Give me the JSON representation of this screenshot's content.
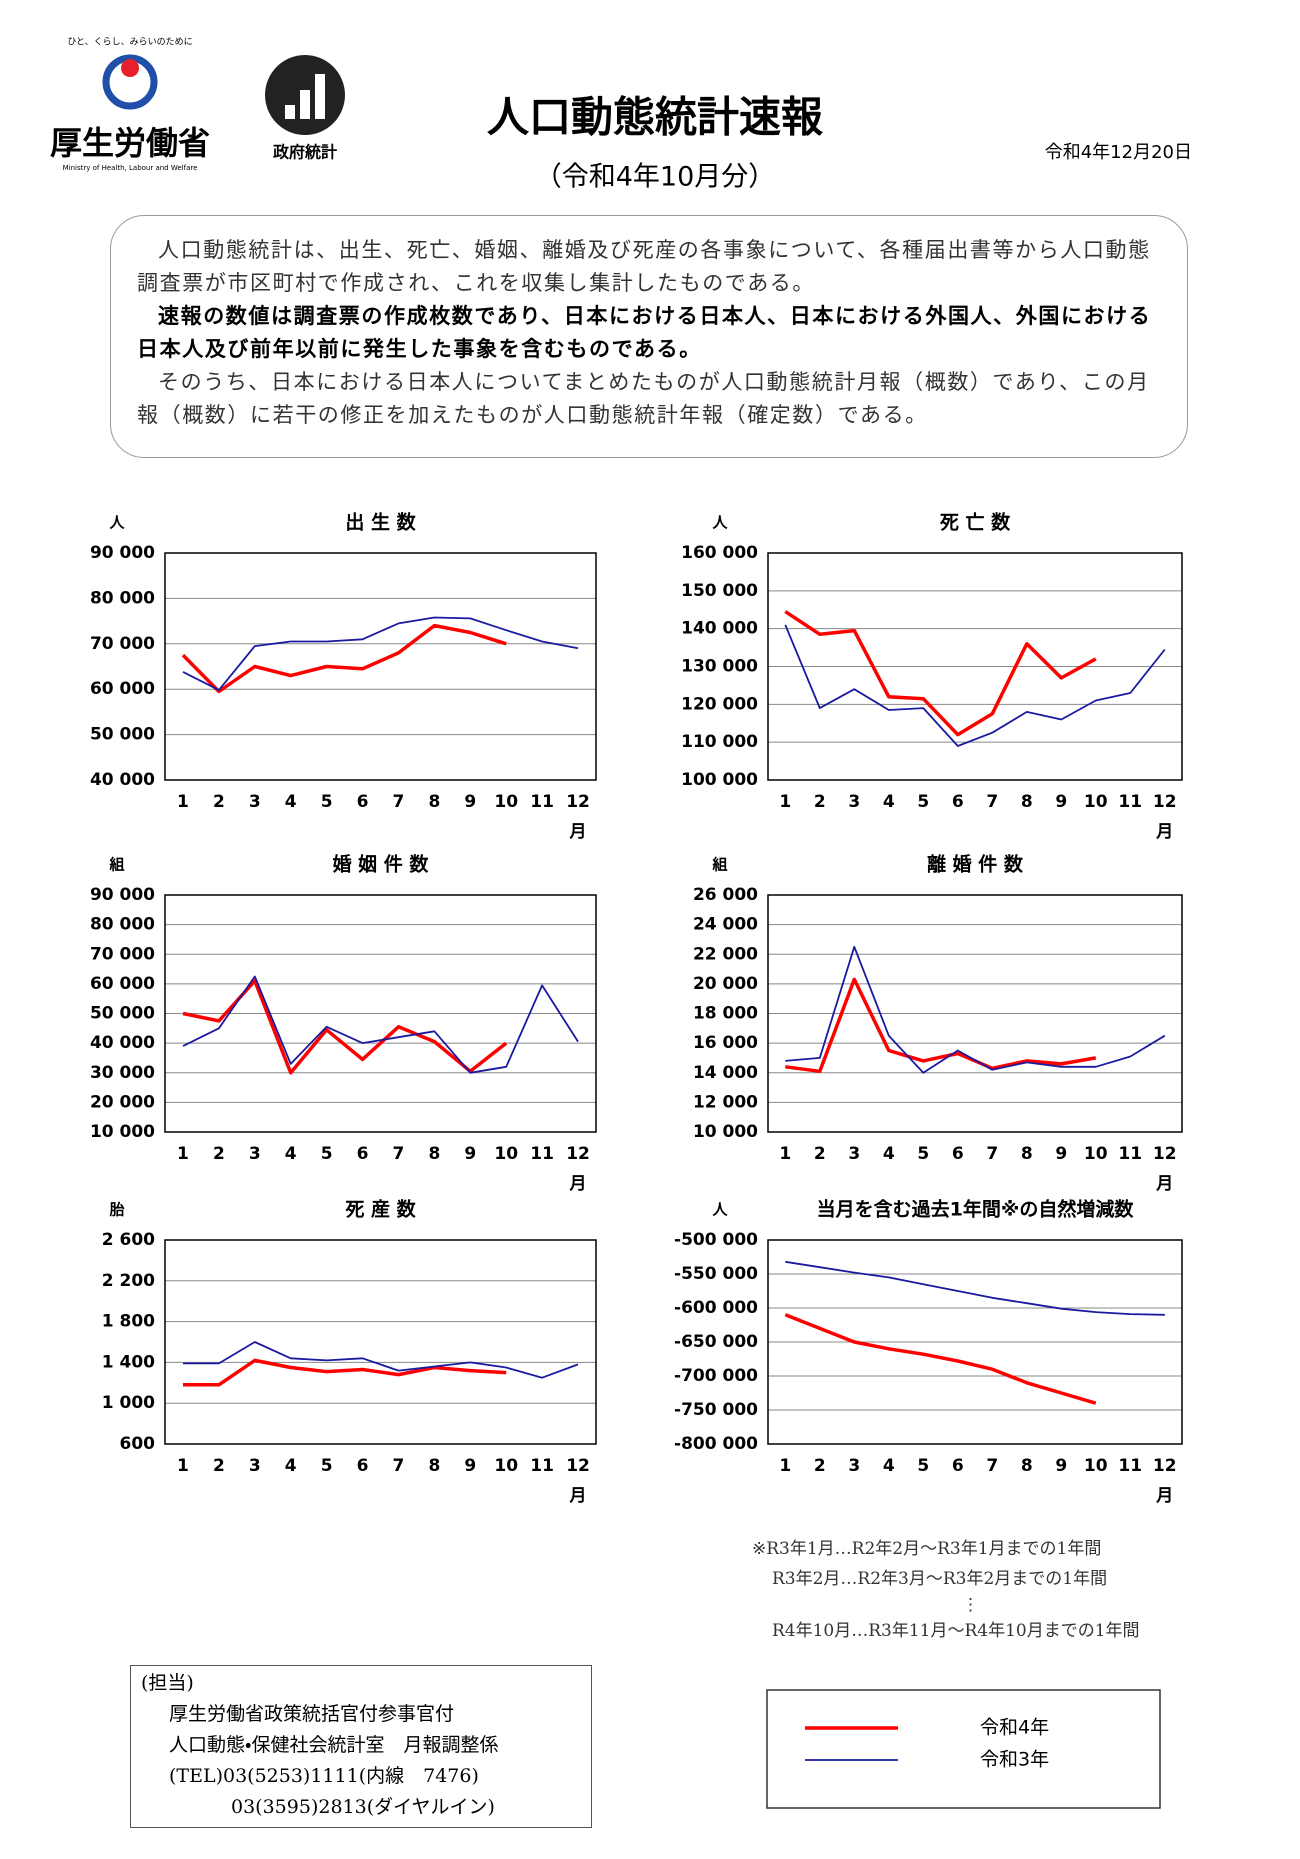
{
  "header": {
    "tagline": "ひと、くらし、みらいのために",
    "ministry": "厚生労働省",
    "ministry_en": "Ministry of Health, Labour and Welfare",
    "stats_logo": "政府統計",
    "title": "人口動態統計速報",
    "subtitle": "（令和4年10月分）",
    "date": "令和4年12月20日"
  },
  "intro": [
    "人口動態統計は、出生、死亡、婚姻、離婚及び死産の各事象について、各種届出書等から人口動態調査票が市区町村で作成され、これを収集し集計したものである。",
    "速報の数値は調査票の作成枚数であり、日本における日本人、日本における外国人、外国における日本人及び前年以前に発生した事象を含むものである。",
    "そのうち、日本における日本人についてまとめたものが人口動態統計月報（概数）であり、この月報（概数）に若干の修正を加えたものが人口動態統計年報（確定数）である。"
  ],
  "chart_data": [
    {
      "type": "line",
      "title": "出 生 数",
      "y_unit": "人",
      "x_unit": "月",
      "grid": true,
      "categories": [
        "1",
        "2",
        "3",
        "4",
        "5",
        "6",
        "7",
        "8",
        "9",
        "10",
        "11",
        "12"
      ],
      "ylim": [
        40000,
        90000
      ],
      "yticks": [
        {
          "value": 40000,
          "label": "40 000"
        },
        {
          "value": 50000,
          "label": "50 000"
        },
        {
          "value": 60000,
          "label": "60 000"
        },
        {
          "value": 70000,
          "label": "70 000"
        },
        {
          "value": 80000,
          "label": "80 000"
        },
        {
          "value": 90000,
          "label": "90 000"
        }
      ],
      "series": [
        {
          "name": "令和4年",
          "color": "#ff0000",
          "values": [
            67500,
            59500,
            65000,
            63000,
            65000,
            64500,
            68000,
            74000,
            72500,
            70000,
            null,
            null
          ]
        },
        {
          "name": "令和3年",
          "color": "#1a1aa0",
          "values": [
            63800,
            59800,
            69500,
            70500,
            70500,
            71000,
            74500,
            75800,
            75600,
            73000,
            70500,
            69000
          ]
        }
      ]
    },
    {
      "type": "line",
      "title": "死 亡 数",
      "y_unit": "人",
      "x_unit": "月",
      "grid": true,
      "categories": [
        "1",
        "2",
        "3",
        "4",
        "5",
        "6",
        "7",
        "8",
        "9",
        "10",
        "11",
        "12"
      ],
      "ylim": [
        100000,
        160000
      ],
      "yticks": [
        {
          "value": 100000,
          "label": "100 000"
        },
        {
          "value": 110000,
          "label": "110 000"
        },
        {
          "value": 120000,
          "label": "120 000"
        },
        {
          "value": 130000,
          "label": "130 000"
        },
        {
          "value": 140000,
          "label": "140 000"
        },
        {
          "value": 150000,
          "label": "150 000"
        },
        {
          "value": 160000,
          "label": "160 000"
        }
      ],
      "series": [
        {
          "color": "#ff0000",
          "values": [
            144500,
            138500,
            139500,
            122000,
            121500,
            112000,
            117500,
            136000,
            127000,
            132000,
            null,
            null
          ]
        },
        {
          "color": "#1a1aa0",
          "values": [
            141000,
            119000,
            124000,
            118500,
            119000,
            109000,
            112500,
            118000,
            116000,
            121000,
            123000,
            134500
          ]
        }
      ]
    },
    {
      "type": "line",
      "title": "婚 姻 件 数",
      "y_unit": "組",
      "x_unit": "月",
      "grid": true,
      "categories": [
        "1",
        "2",
        "3",
        "4",
        "5",
        "6",
        "7",
        "8",
        "9",
        "10",
        "11",
        "12"
      ],
      "ylim": [
        10000,
        90000
      ],
      "yticks": [
        {
          "value": 10000,
          "label": "10 000"
        },
        {
          "value": 20000,
          "label": "20 000"
        },
        {
          "value": 30000,
          "label": "30 000"
        },
        {
          "value": 40000,
          "label": "40 000"
        },
        {
          "value": 50000,
          "label": "50 000"
        },
        {
          "value": 60000,
          "label": "60 000"
        },
        {
          "value": 70000,
          "label": "70 000"
        },
        {
          "value": 80000,
          "label": "80 000"
        },
        {
          "value": 90000,
          "label": "90 000"
        }
      ],
      "series": [
        {
          "color": "#ff0000",
          "values": [
            50000,
            47500,
            61000,
            30000,
            44500,
            34500,
            45500,
            40500,
            30500,
            40000,
            null,
            null
          ]
        },
        {
          "color": "#1a1aa0",
          "values": [
            39000,
            45000,
            62500,
            33000,
            45500,
            40000,
            42000,
            44000,
            30000,
            32000,
            59500,
            40500
          ]
        }
      ]
    },
    {
      "type": "line",
      "title": "離 婚 件 数",
      "y_unit": "組",
      "x_unit": "月",
      "grid": true,
      "categories": [
        "1",
        "2",
        "3",
        "4",
        "5",
        "6",
        "7",
        "8",
        "9",
        "10",
        "11",
        "12"
      ],
      "ylim": [
        10000,
        26000
      ],
      "yticks": [
        {
          "value": 10000,
          "label": "10 000"
        },
        {
          "value": 12000,
          "label": "12 000"
        },
        {
          "value": 14000,
          "label": "14 000"
        },
        {
          "value": 16000,
          "label": "16 000"
        },
        {
          "value": 18000,
          "label": "18 000"
        },
        {
          "value": 20000,
          "label": "20 000"
        },
        {
          "value": 22000,
          "label": "22 000"
        },
        {
          "value": 24000,
          "label": "24 000"
        },
        {
          "value": 26000,
          "label": "26 000"
        }
      ],
      "series": [
        {
          "color": "#ff0000",
          "values": [
            14400,
            14100,
            20300,
            15500,
            14800,
            15300,
            14300,
            14800,
            14600,
            15000,
            null,
            null
          ]
        },
        {
          "color": "#1a1aa0",
          "values": [
            14800,
            15000,
            22500,
            16500,
            14000,
            15500,
            14200,
            14700,
            14400,
            14400,
            15100,
            16500
          ]
        }
      ]
    },
    {
      "type": "line",
      "title": "死 産 数",
      "y_unit": "胎",
      "x_unit": "月",
      "grid": true,
      "categories": [
        "1",
        "2",
        "3",
        "4",
        "5",
        "6",
        "7",
        "8",
        "9",
        "10",
        "11",
        "12"
      ],
      "ylim": [
        600,
        2600
      ],
      "yticks": [
        600,
        {
          "value": 1000,
          "label": "1 000"
        },
        {
          "value": 1400,
          "label": "1 400"
        },
        {
          "value": 1800,
          "label": "1 800"
        },
        {
          "value": 2200,
          "label": "2 200"
        },
        {
          "value": 2600,
          "label": "2 600"
        }
      ],
      "series": [
        {
          "color": "#ff0000",
          "values": [
            1180,
            1180,
            1420,
            1350,
            1310,
            1330,
            1280,
            1350,
            1320,
            1300,
            null,
            null
          ]
        },
        {
          "color": "#1a1aa0",
          "values": [
            1390,
            1390,
            1600,
            1440,
            1420,
            1440,
            1320,
            1360,
            1400,
            1350,
            1250,
            1380
          ]
        }
      ]
    },
    {
      "type": "line",
      "title": "当月を含む過去1年間※の自然増減数",
      "y_unit": "人",
      "x_unit": "月",
      "grid": true,
      "categories": [
        "1",
        "2",
        "3",
        "4",
        "5",
        "6",
        "7",
        "8",
        "9",
        "10",
        "11",
        "12"
      ],
      "ylim": [
        -800000,
        -500000
      ],
      "yticks": [
        {
          "value": -800000,
          "label": "-800 000"
        },
        {
          "value": -750000,
          "label": "-750 000"
        },
        {
          "value": -700000,
          "label": "-700 000"
        },
        {
          "value": -650000,
          "label": "-650 000"
        },
        {
          "value": -600000,
          "label": "-600 000"
        },
        {
          "value": -550000,
          "label": "-550 000"
        },
        {
          "value": -500000,
          "label": "-500 000"
        }
      ],
      "series": [
        {
          "color": "#ff0000",
          "values": [
            -610000,
            -630000,
            -650000,
            -660000,
            -668000,
            -678000,
            -690000,
            -710000,
            -725000,
            -740000,
            null,
            null
          ]
        },
        {
          "color": "#1a1aa0",
          "values": [
            -532000,
            -540000,
            -548000,
            -555000,
            -565000,
            -575000,
            -585000,
            -593000,
            -601000,
            -606000,
            -609000,
            -610000
          ]
        }
      ]
    }
  ],
  "footnote": [
    "※R3年1月…R2年2月～R3年1月までの1年間",
    "R3年2月…R2年3月～R3年2月までの1年間",
    "⋮",
    "R4年10月…R3年11月～R4年10月までの1年間"
  ],
  "contact": [
    "(担当)",
    "厚生労働省政策統括官付参事官付",
    "人口動態・保健社会統計室　月報調整係",
    "(TEL)03(5253)1111(内線　7476)",
    "03(3595)2813(ダイヤルイン)"
  ]
}
